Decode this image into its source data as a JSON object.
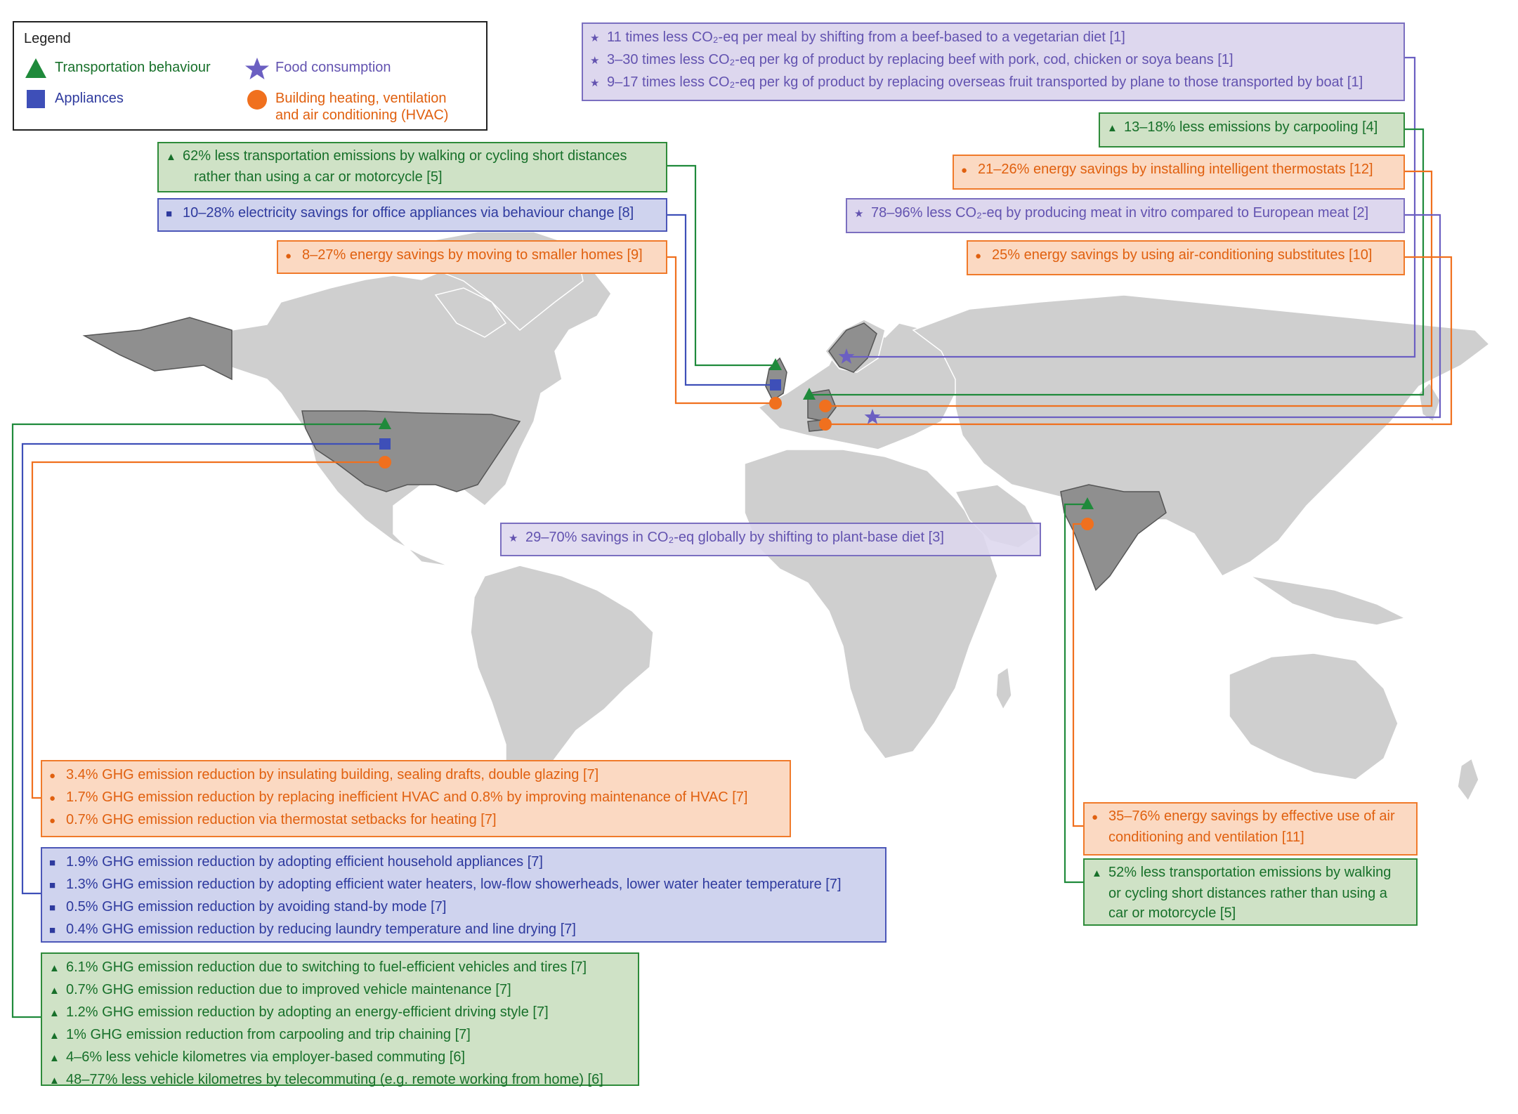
{
  "legend": {
    "title": "Legend",
    "transport": "Transportation behaviour",
    "food": "Food consumption",
    "appliances": "Appliances",
    "hvac_line1": "Building heating, ventilation",
    "hvac_line2": "and air conditioning (HVAC)"
  },
  "colors": {
    "transport": "#1f8a3b",
    "appliances": "#3e4fb8",
    "food": "#6b5fc2",
    "hvac": "#f0701e",
    "land": "#cfcfcf",
    "highlight": "#8f8f8f"
  },
  "icons": {
    "transport": "triangle-icon",
    "appliances": "square-icon",
    "food": "star-icon",
    "hvac": "circle-icon"
  },
  "boxes": {
    "food_top": [
      "11 times less CO₂-eq per meal by shifting from a beef-based to a vegetarian diet [1]",
      "3–30 times less CO₂-eq per kg of product by replacing beef with pork, cod, chicken or soya beans [1]",
      "9–17 times less CO₂-eq per kg of product by replacing overseas fruit transported by plane to those transported by boat [1]"
    ],
    "carpool": [
      "13–18% less emissions by carpooling [4]"
    ],
    "thermostat": [
      "21–26% energy savings by installing intelligent thermostats [12]"
    ],
    "invitro": [
      "78–96% less CO₂-eq by producing meat in vitro compared to European meat [2]"
    ],
    "ac_subst": [
      "25% energy savings by using air-conditioning substitutes [10]"
    ],
    "walk_eu": [
      "62% less transportation emissions by walking or cycling short distances",
      "rather than using a car or motorcycle [5]"
    ],
    "office": [
      "10–28% electricity savings for office appliances via behaviour change [8]"
    ],
    "smaller": [
      "8–27% energy savings by moving to smaller homes [9]"
    ],
    "plant": [
      "29–70% savings in CO₂-eq globally by shifting to plant-base diet [3]"
    ],
    "us_hvac": [
      "3.4% GHG emission reduction by insulating building, sealing drafts, double glazing [7]",
      "1.7% GHG emission reduction by replacing inefficient HVAC and 0.8% by improving maintenance of HVAC [7]",
      "0.7% GHG emission reduction via thermostat setbacks for heating [7]"
    ],
    "us_appl": [
      "1.9% GHG emission reduction by adopting efficient household appliances [7]",
      "1.3% GHG emission reduction by adopting efficient water heaters, low-flow showerheads, lower water heater temperature [7]",
      "0.5% GHG emission reduction by avoiding stand-by mode [7]",
      "0.4% GHG emission reduction by reducing laundry temperature and line drying [7]"
    ],
    "us_trans": [
      "6.1% GHG emission reduction due to switching to fuel-efficient vehicles and tires [7]",
      "0.7% GHG emission reduction due to improved vehicle maintenance [7]",
      "1.2% GHG emission reduction by adopting an energy-efficient driving style [7]",
      "1% GHG emission reduction from carpooling and trip chaining [7]",
      "4–6% less vehicle kilometres via employer-based commuting [6]",
      "48–77% less vehicle kilometres by telecommuting (e.g. remote working from home) [6]"
    ],
    "india_ac": [
      "35–76% energy savings by effective use of air",
      "conditioning and ventilation [11]"
    ],
    "india_walk": [
      "52% less transportation emissions by walking",
      "or cycling short distances rather than using a",
      "car or motorcycle [5]"
    ]
  }
}
